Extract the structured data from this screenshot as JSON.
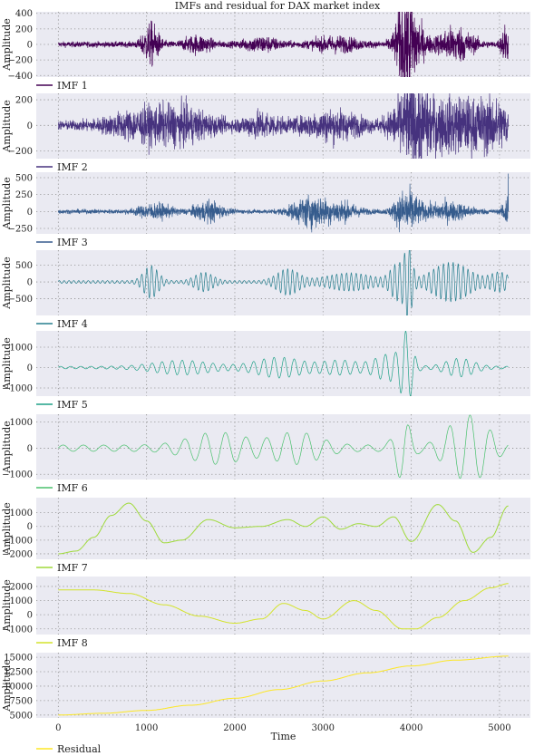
{
  "title": "IMFs and residual for DAX market index",
  "chart_data": {
    "type": "line",
    "title": "IMFs and residual for DAX market index",
    "xlabel": "Time",
    "xlim": [
      -250,
      5350
    ],
    "xticks": [
      0,
      1000,
      2000,
      3000,
      4000,
      5000
    ],
    "n_points": 5100,
    "grid": true,
    "legend_placement": "below each panel, left",
    "panels": [
      {
        "name": "IMF 1",
        "ylabel": "Amplitude",
        "color": "#440154",
        "ylim": [
          -420,
          420
        ],
        "yticks": [
          -400,
          -200,
          0,
          200,
          400
        ],
        "shape": "noise",
        "base": 25,
        "bursts": [
          [
            1050,
            70,
            180
          ],
          [
            1580,
            120,
            70
          ],
          [
            2300,
            150,
            60
          ],
          [
            3150,
            200,
            60
          ],
          [
            3950,
            80,
            380
          ],
          [
            4000,
            120,
            160
          ],
          [
            4500,
            150,
            150
          ],
          [
            5070,
            40,
            160
          ]
        ],
        "end_spike": 0
      },
      {
        "name": "IMF 2",
        "ylabel": "Amplitude",
        "color": "#46327e",
        "ylim": [
          -260,
          250
        ],
        "yticks": [
          -200,
          0,
          200
        ],
        "shape": "noise",
        "base": 25,
        "bursts": [
          [
            950,
            300,
            70
          ],
          [
            1450,
            250,
            70
          ],
          [
            2300,
            150,
            60
          ],
          [
            3100,
            250,
            70
          ],
          [
            4000,
            150,
            200
          ],
          [
            4450,
            250,
            130
          ],
          [
            4950,
            200,
            110
          ]
        ],
        "end_spike": 0
      },
      {
        "name": "IMF 3",
        "ylabel": "Amplitude",
        "color": "#365c8d",
        "ylim": [
          -330,
          580
        ],
        "yticks": [
          -250,
          0,
          250,
          500
        ],
        "shape": "noise",
        "base": 22,
        "bursts": [
          [
            1100,
            150,
            70
          ],
          [
            1700,
            120,
            100
          ],
          [
            2850,
            150,
            150
          ],
          [
            3200,
            150,
            90
          ],
          [
            3950,
            100,
            220
          ],
          [
            4400,
            200,
            90
          ],
          [
            5080,
            30,
            200
          ]
        ],
        "end_spike": 560
      },
      {
        "name": "IMF 4",
        "ylabel": "Amplitude",
        "color": "#277f8e",
        "ylim": [
          -1000,
          950
        ],
        "yticks": [
          -500,
          0,
          500
        ],
        "shape": "osc",
        "period": 55,
        "base": 40,
        "bursts": [
          [
            1050,
            80,
            450
          ],
          [
            1650,
            100,
            250
          ],
          [
            2600,
            120,
            350
          ],
          [
            3300,
            250,
            230
          ],
          [
            3850,
            80,
            500
          ],
          [
            3970,
            40,
            900
          ],
          [
            4450,
            200,
            550
          ],
          [
            5000,
            100,
            250
          ]
        ],
        "end_spike": 0
      },
      {
        "name": "IMF 5",
        "ylabel": "Amplitude",
        "color": "#1fa187",
        "ylim": [
          -1400,
          1800
        ],
        "yticks": [
          -1000,
          0,
          1000
        ],
        "shape": "osc",
        "period": 115,
        "base": 60,
        "bursts": [
          [
            1400,
            300,
            300
          ],
          [
            2500,
            250,
            450
          ],
          [
            3200,
            200,
            300
          ],
          [
            3750,
            150,
            600
          ],
          [
            3950,
            60,
            1500
          ],
          [
            4550,
            150,
            400
          ]
        ],
        "end_spike": 0
      },
      {
        "name": "IMF 6",
        "ylabel": "Amplitude",
        "color": "#4ac16d",
        "ylim": [
          -1200,
          1300
        ],
        "yticks": [
          -1000,
          0,
          1000
        ],
        "shape": "osc",
        "period": 230,
        "base": 120,
        "bursts": [
          [
            1800,
            300,
            500
          ],
          [
            2700,
            250,
            500
          ],
          [
            3900,
            80,
            1100
          ],
          [
            4500,
            150,
            700
          ],
          [
            4750,
            150,
            900
          ]
        ],
        "end_spike": 0
      },
      {
        "name": "IMF 7",
        "ylabel": "Amplitude",
        "color": "#9fda3a",
        "ylim": [
          -2400,
          2100
        ],
        "yticks": [
          -2000,
          -1000,
          0,
          1000
        ],
        "shape": "knots",
        "knots": [
          [
            0,
            -2000
          ],
          [
            200,
            -1800
          ],
          [
            400,
            -800
          ],
          [
            600,
            800
          ],
          [
            800,
            1700
          ],
          [
            1000,
            400
          ],
          [
            1200,
            -1200
          ],
          [
            1400,
            -1000
          ],
          [
            1700,
            500
          ],
          [
            2000,
            -100
          ],
          [
            2300,
            0
          ],
          [
            2600,
            500
          ],
          [
            2800,
            0
          ],
          [
            3000,
            700
          ],
          [
            3200,
            -200
          ],
          [
            3400,
            200
          ],
          [
            3600,
            0
          ],
          [
            3800,
            700
          ],
          [
            4000,
            -1100
          ],
          [
            4300,
            1600
          ],
          [
            4500,
            400
          ],
          [
            4700,
            -1900
          ],
          [
            4900,
            -800
          ],
          [
            5100,
            1500
          ]
        ],
        "end_spike": 0
      },
      {
        "name": "IMF 8",
        "ylabel": "Amplitude",
        "color": "#d3e32b",
        "ylim": [
          -1400,
          2700
        ],
        "yticks": [
          -1000,
          0,
          1000,
          2000
        ],
        "shape": "knots",
        "knots": [
          [
            0,
            1750
          ],
          [
            400,
            1750
          ],
          [
            800,
            1500
          ],
          [
            1200,
            700
          ],
          [
            1600,
            -100
          ],
          [
            2000,
            -600
          ],
          [
            2300,
            -300
          ],
          [
            2550,
            800
          ],
          [
            2800,
            300
          ],
          [
            3000,
            -300
          ],
          [
            3350,
            1000
          ],
          [
            3600,
            300
          ],
          [
            3900,
            -1000
          ],
          [
            4050,
            -1000
          ],
          [
            4300,
            -200
          ],
          [
            4600,
            1000
          ],
          [
            4900,
            1900
          ],
          [
            5100,
            2200
          ]
        ],
        "end_spike": 0
      },
      {
        "name": "Residual",
        "ylabel": "Amplitude",
        "color": "#fde725",
        "ylim": [
          4500,
          15800
        ],
        "yticks": [
          5000,
          7500,
          10000,
          12500,
          15000
        ],
        "shape": "knots",
        "knots": [
          [
            0,
            5000
          ],
          [
            500,
            5300
          ],
          [
            1000,
            5800
          ],
          [
            1500,
            6700
          ],
          [
            2000,
            7900
          ],
          [
            2500,
            9400
          ],
          [
            3000,
            10900
          ],
          [
            3500,
            12300
          ],
          [
            4000,
            13500
          ],
          [
            4500,
            14500
          ],
          [
            5100,
            15200
          ]
        ],
        "end_spike": 0
      }
    ]
  }
}
